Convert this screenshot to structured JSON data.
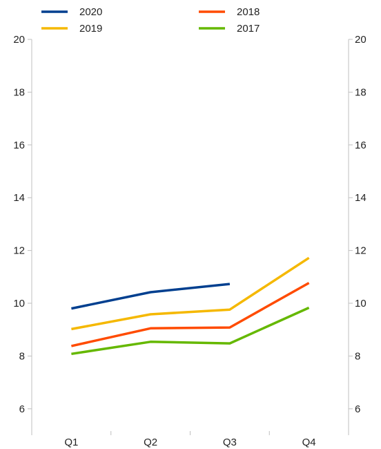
{
  "chart_data": {
    "type": "line",
    "categories": [
      "Q1",
      "Q2",
      "Q3",
      "Q4"
    ],
    "series": [
      {
        "name": "2020",
        "color": "#003f8f",
        "values": [
          9.8,
          10.42,
          10.73,
          null
        ]
      },
      {
        "name": "2019",
        "color": "#f5b800",
        "values": [
          9.02,
          9.58,
          9.76,
          11.72
        ]
      },
      {
        "name": "2018",
        "color": "#ff4b00",
        "values": [
          8.38,
          9.05,
          9.08,
          10.77
        ]
      },
      {
        "name": "2017",
        "color": "#65b800",
        "values": [
          8.08,
          8.54,
          8.48,
          9.83
        ]
      }
    ],
    "ylim": [
      5,
      20
    ],
    "y_ticks": [
      6,
      8,
      10,
      12,
      14,
      16,
      18,
      20
    ],
    "y_axis_right": true,
    "grid": false,
    "legend_position": "top"
  }
}
